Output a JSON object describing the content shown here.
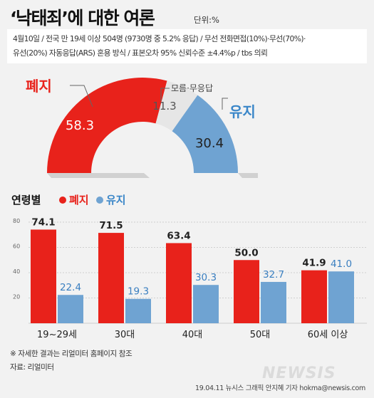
{
  "header": {
    "title": "‘낙태죄’에 대한 여론",
    "unit": "단위:%",
    "survey_line1": "4월10일 / 전국 만 19세 이상 504명 (9730명 중 5.2% 응답) / 무선 전화면접(10%)·무선(70%)·",
    "survey_line2": "유선(20%) 자동응답(ARS) 혼용 방식 / 표본오차 95% 신뢰수준 ±4.4%p / tbs 의뢰"
  },
  "colors": {
    "abolish": "#e8221b",
    "keep": "#6fa3d2",
    "unknown": "#e6e6e6"
  },
  "chart_data": [
    {
      "type": "pie",
      "variant": "half-donut",
      "slices": [
        {
          "label": "폐지",
          "value": 58.3
        },
        {
          "label": "모름·무응답",
          "value": 11.3
        },
        {
          "label": "유지",
          "value": 30.4
        }
      ]
    },
    {
      "type": "bar",
      "title": "연령별",
      "categories": [
        "19~29세",
        "30대",
        "40대",
        "50대",
        "60세 이상"
      ],
      "series": [
        {
          "name": "폐지",
          "values": [
            74.1,
            71.5,
            63.4,
            50.0,
            41.9
          ]
        },
        {
          "name": "유지",
          "values": [
            22.4,
            19.3,
            30.3,
            32.7,
            41.0
          ]
        }
      ],
      "value_labels": {
        "abolish": [
          "74.1",
          "71.5",
          "63.4",
          "50.0",
          "41.9"
        ],
        "keep": [
          "22.4",
          "19.3",
          "30.3",
          "32.7",
          "41.0"
        ]
      },
      "ylim": [
        0,
        80
      ],
      "yticks": [
        "0",
        "20",
        "40",
        "60",
        "80"
      ],
      "grid": true,
      "legend_position": "top-left"
    }
  ],
  "notes": {
    "detail": "※ 자세한 결과는 리얼미터 홈페이지 참조",
    "source": "자료: 리얼미터"
  },
  "footer": {
    "credit": "19.04.11 뉴시스 그래픽 안지혜 기자 hokma@newsis.com",
    "watermark": "NEWSIS"
  }
}
